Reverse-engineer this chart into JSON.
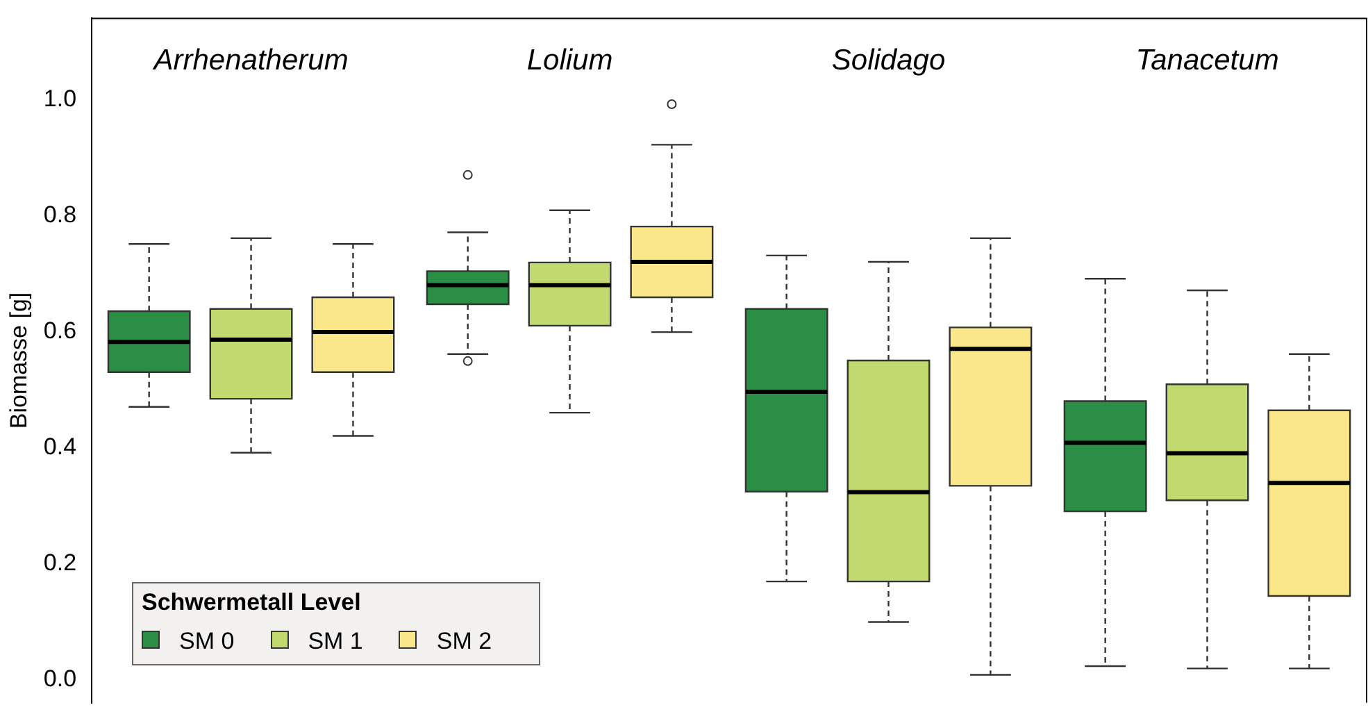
{
  "chart_data": {
    "type": "box",
    "ylabel": "Biomasse [g]",
    "legend_title": "Schwermetall Level",
    "legend": "bottom left",
    "categories": [
      "Arrhenatherum",
      "Lolium",
      "Solidago",
      "Tanacetum"
    ],
    "ylim": [
      -0.04,
      1.14
    ],
    "yticks": [
      {
        "value": 0,
        "label": "0.0"
      },
      0.2,
      0.4,
      0.6,
      0.8,
      {
        "value": 1,
        "label": "1.0"
      }
    ],
    "series": [
      {
        "name": "SM 0",
        "color": "#2a8f45",
        "boxes": [
          {
            "low": 0.47,
            "q1": 0.53,
            "median": 0.582,
            "q3": 0.635,
            "high": 0.751
          },
          {
            "low": 0.561,
            "q1": 0.647,
            "median": 0.68,
            "q3": 0.704,
            "high": 0.771,
            "outliers": [
              0.87,
              0.549
            ]
          },
          {
            "low": 0.169,
            "q1": 0.324,
            "median": 0.496,
            "q3": 0.639,
            "high": 0.731
          },
          {
            "low": 0.023,
            "q1": 0.29,
            "median": 0.408,
            "q3": 0.48,
            "high": 0.691
          }
        ]
      },
      {
        "name": "SM 1",
        "color": "#c2d96f",
        "boxes": [
          {
            "low": 0.391,
            "q1": 0.484,
            "median": 0.586,
            "q3": 0.639,
            "high": 0.761
          },
          {
            "low": 0.46,
            "q1": 0.61,
            "median": 0.68,
            "q3": 0.719,
            "high": 0.809
          },
          {
            "low": 0.099,
            "q1": 0.169,
            "median": 0.323,
            "q3": 0.55,
            "high": 0.72
          },
          {
            "low": 0.019,
            "q1": 0.309,
            "median": 0.39,
            "q3": 0.509,
            "high": 0.671
          }
        ]
      },
      {
        "name": "SM 2",
        "color": "#fae789",
        "boxes": [
          {
            "low": 0.42,
            "q1": 0.53,
            "median": 0.599,
            "q3": 0.659,
            "high": 0.751
          },
          {
            "low": 0.599,
            "q1": 0.659,
            "median": 0.72,
            "q3": 0.781,
            "high": 0.922,
            "outliers": [
              0.992
            ]
          },
          {
            "low": 0.008,
            "q1": 0.334,
            "median": 0.57,
            "q3": 0.607,
            "high": 0.761
          },
          {
            "low": 0.019,
            "q1": 0.144,
            "median": 0.339,
            "q3": 0.464,
            "high": 0.561
          }
        ]
      }
    ]
  }
}
